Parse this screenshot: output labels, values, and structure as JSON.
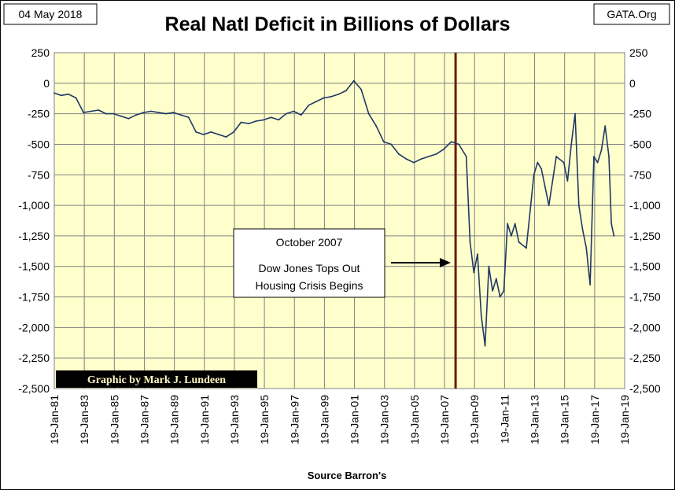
{
  "header": {
    "date_label": "04 May 2018",
    "title": "Real Natl Deficit in Billions of Dollars",
    "source_site": "GATA.Org"
  },
  "colors": {
    "plot_background": "#ffffcc",
    "series_line": "#1f3864",
    "event_line": "#6b1a0c",
    "credit_background": "#000000"
  },
  "annotation": {
    "line1": "October 2007",
    "line2": "Dow Jones Tops Out",
    "line3": "Housing Crisis Begins"
  },
  "credit": "Graphic by Mark J. Lundeen",
  "chart_data": {
    "type": "line",
    "title": "Real Natl Deficit in Billions of Dollars",
    "xlabel": "Source Barron's",
    "ylabel": "",
    "ylim": [
      -2500,
      250
    ],
    "yticks": [
      250,
      0,
      -250,
      -500,
      -750,
      -1000,
      -1250,
      -1500,
      -1750,
      -2000,
      -2250,
      -2500
    ],
    "ytick_labels": [
      "250",
      "0",
      "-250",
      "-500",
      "-750",
      "-1,000",
      "-1,250",
      "-1,500",
      "-1,750",
      "-2,000",
      "-2,250",
      "-2,500"
    ],
    "xlim": [
      "1981-01-19",
      "2019-01-19"
    ],
    "xtick_labels": [
      "19-Jan-81",
      "19-Jan-83",
      "19-Jan-85",
      "19-Jan-87",
      "19-Jan-89",
      "19-Jan-91",
      "19-Jan-93",
      "19-Jan-95",
      "19-Jan-97",
      "19-Jan-99",
      "19-Jan-01",
      "19-Jan-03",
      "19-Jan-05",
      "19-Jan-07",
      "19-Jan-09",
      "19-Jan-11",
      "19-Jan-13",
      "19-Jan-15",
      "19-Jan-17",
      "19-Jan-19"
    ],
    "grid": true,
    "vertical_marker": "2007-10-15",
    "series": [
      {
        "x": [
          "1981-01-19",
          "1981-07-01",
          "1982-01-01",
          "1982-07-01",
          "1983-01-01",
          "1983-07-01",
          "1984-01-01",
          "1984-07-01",
          "1985-01-01",
          "1985-07-01",
          "1986-01-01",
          "1986-07-01",
          "1987-01-01",
          "1987-07-01",
          "1988-01-01",
          "1988-07-01",
          "1989-01-01",
          "1989-07-01",
          "1990-01-01",
          "1990-07-01",
          "1991-01-01",
          "1991-07-01",
          "1992-01-01",
          "1992-07-01",
          "1993-01-01",
          "1993-07-01",
          "1994-01-01",
          "1994-07-01",
          "1995-01-01",
          "1995-07-01",
          "1996-01-01",
          "1996-07-01",
          "1997-01-01",
          "1997-07-01",
          "1998-01-01",
          "1998-07-01",
          "1999-01-01",
          "1999-07-01",
          "2000-01-01",
          "2000-07-01",
          "2001-01-01",
          "2001-07-01",
          "2002-01-01",
          "2002-07-01",
          "2003-01-01",
          "2003-07-01",
          "2004-01-01",
          "2004-07-01",
          "2005-01-01",
          "2005-07-01",
          "2006-01-01",
          "2006-07-01",
          "2007-01-01",
          "2007-07-01",
          "2008-01-01",
          "2008-07-01",
          "2008-10-01",
          "2009-01-01",
          "2009-04-01",
          "2009-07-01",
          "2009-10-01",
          "2010-01-01",
          "2010-04-01",
          "2010-07-01",
          "2010-10-01",
          "2011-01-01",
          "2011-04-01",
          "2011-07-01",
          "2011-10-01",
          "2012-01-01",
          "2012-07-01",
          "2013-01-01",
          "2013-04-01",
          "2013-07-01",
          "2014-01-01",
          "2014-07-01",
          "2015-01-01",
          "2015-04-01",
          "2015-07-01",
          "2015-10-01",
          "2016-01-01",
          "2016-04-01",
          "2016-07-01",
          "2016-10-01",
          "2017-01-01",
          "2017-04-01",
          "2017-07-01",
          "2017-10-01",
          "2018-01-01",
          "2018-03-01",
          "2018-05-04"
        ],
        "y": [
          -80,
          -100,
          -90,
          -120,
          -240,
          -230,
          -220,
          -250,
          -250,
          -270,
          -290,
          -260,
          -240,
          -230,
          -240,
          -250,
          -240,
          -260,
          -280,
          -400,
          -420,
          -400,
          -420,
          -440,
          -400,
          -320,
          -330,
          -310,
          -300,
          -280,
          -300,
          -250,
          -230,
          -260,
          -180,
          -150,
          -120,
          -110,
          -90,
          -60,
          20,
          -50,
          -250,
          -350,
          -480,
          -500,
          -580,
          -620,
          -650,
          -620,
          -600,
          -580,
          -540,
          -480,
          -500,
          -600,
          -1300,
          -1550,
          -1400,
          -1900,
          -2150,
          -1500,
          -1700,
          -1600,
          -1750,
          -1700,
          -1150,
          -1250,
          -1150,
          -1300,
          -1350,
          -750,
          -650,
          -700,
          -1000,
          -600,
          -650,
          -800,
          -500,
          -250,
          -1000,
          -1200,
          -1350,
          -1650,
          -600,
          -650,
          -550,
          -350,
          -600,
          -1150,
          -1250
        ]
      }
    ]
  }
}
